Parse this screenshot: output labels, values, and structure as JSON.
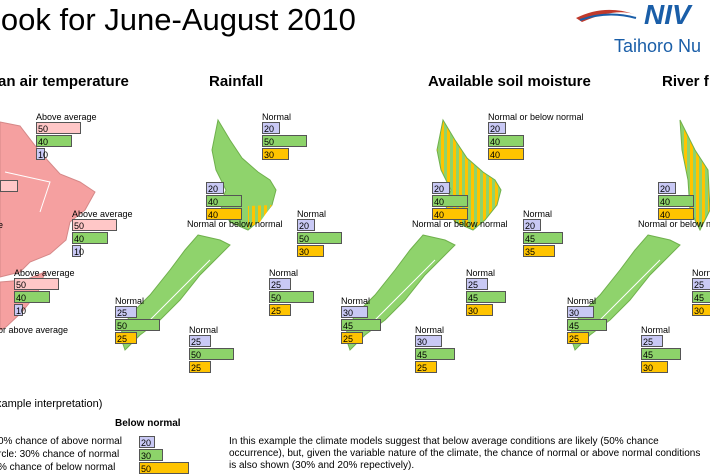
{
  "header": {
    "title": "look for June-August 2010",
    "logo_text": "Taihoro Nu",
    "logo_mark": "NIV"
  },
  "panels": [
    {
      "title": "an air temperature",
      "regions": [
        {
          "label": "Above average",
          "values": [
            "50",
            "40",
            "10"
          ]
        },
        {
          "label": "Above average",
          "values": [
            "50",
            "40",
            "10"
          ]
        },
        {
          "label": "Above average",
          "values": [
            "50",
            "40",
            "10"
          ]
        },
        {
          "label": "or above average",
          "values": []
        }
      ]
    },
    {
      "title": "Rainfall",
      "regions": [
        {
          "label": "Normal",
          "values": [
            "20",
            "50",
            "30"
          ]
        },
        {
          "label": "Normal or below normal",
          "values": [
            "20",
            "40",
            "40"
          ]
        },
        {
          "label": "Normal",
          "values": [
            "20",
            "50",
            "30"
          ]
        },
        {
          "label": "Normal",
          "values": [
            "25",
            "50",
            "25"
          ]
        },
        {
          "label": "Normal",
          "values": [
            "25",
            "50",
            "25"
          ]
        },
        {
          "label": "Normal",
          "values": [
            "25",
            "50",
            "25"
          ]
        }
      ]
    },
    {
      "title": "Available soil moisture",
      "regions": [
        {
          "label": "Normal or below normal",
          "values": [
            "20",
            "40",
            "40"
          ]
        },
        {
          "label": "Normal or below normal",
          "values": [
            "20",
            "40",
            "40"
          ]
        },
        {
          "label": "Normal",
          "values": [
            "20",
            "45",
            "35"
          ]
        },
        {
          "label": "Normal",
          "values": [
            "25",
            "45",
            "30"
          ]
        },
        {
          "label": "Normal",
          "values": [
            "30",
            "45",
            "25"
          ]
        },
        {
          "label": "Normal",
          "values": [
            "30",
            "45",
            "25"
          ]
        }
      ]
    },
    {
      "title": "River f",
      "regions": [
        {
          "label": "Normal or below normal",
          "values": [
            "20",
            "40",
            "40"
          ]
        },
        {
          "label": "Norn",
          "values": [
            "25",
            "45",
            "30"
          ]
        },
        {
          "label": "Normal",
          "values": [
            "30",
            "45",
            "25"
          ]
        },
        {
          "label": "Normal",
          "values": [
            "25",
            "45",
            "30"
          ]
        }
      ]
    }
  ],
  "example": {
    "title": "xample interpretation)",
    "heading": "Below normal",
    "rows": [
      {
        "text": "0% chance of above normal",
        "value": "20"
      },
      {
        "text": "rcle: 30% chance of normal",
        "value": "30"
      },
      {
        "text": "% chance of below normal",
        "value": "50"
      }
    ],
    "description": "In this example the climate models suggest that below average conditions are likely (50% chance occurrence), but, given the variable nature of the climate, the chance of normal or above normal conditions is also shown (30% and 20% repectively)."
  },
  "colors": {
    "above": "#ffc7c7",
    "normal": "#8dd36a",
    "below": "#ffc400",
    "above_blue": "#c9c9f5",
    "land_green": "#8fd36c",
    "land_pink": "#f5a0a0",
    "logo_blue": "#1a5ea8"
  }
}
